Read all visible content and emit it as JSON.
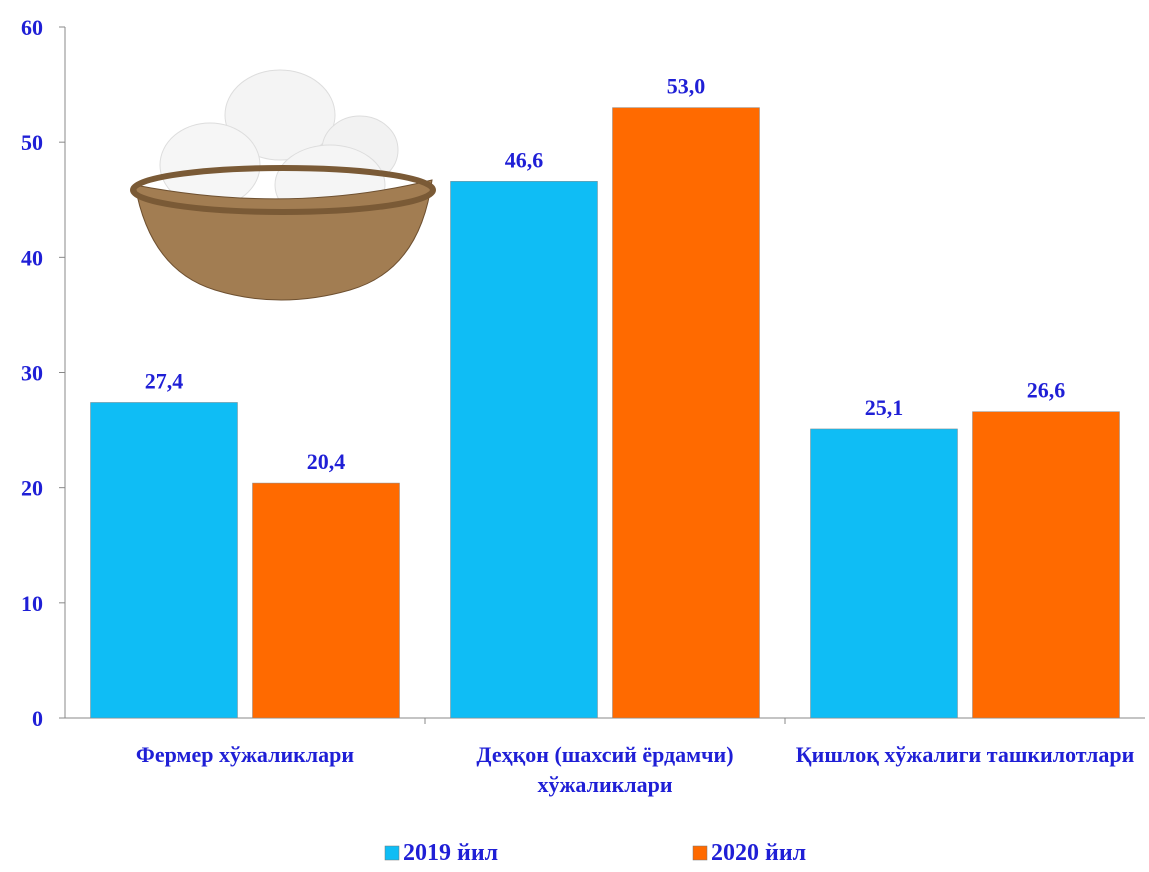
{
  "chart_data": {
    "type": "bar",
    "categories": [
      "Фермер хўжаликлари",
      "Деҳқон (шахсий ёрдамчи) хўжаликлари",
      "Қишлоқ хўжалиги ташкилотлари"
    ],
    "series": [
      {
        "name": "2019 йил",
        "color": "#0fbdf5",
        "values": [
          27.4,
          46.6,
          25.1
        ],
        "value_labels": [
          "27,4",
          "46,6",
          "25,1"
        ]
      },
      {
        "name": "2020 йил",
        "color": "#ff6a00",
        "values": [
          20.4,
          53.0,
          26.6
        ],
        "value_labels": [
          "20,4",
          "53,0",
          "26,6"
        ]
      }
    ],
    "ylim": [
      0,
      60
    ],
    "yticks": [
      0,
      10,
      20,
      30,
      40,
      50,
      60
    ],
    "legend": "bottom"
  }
}
